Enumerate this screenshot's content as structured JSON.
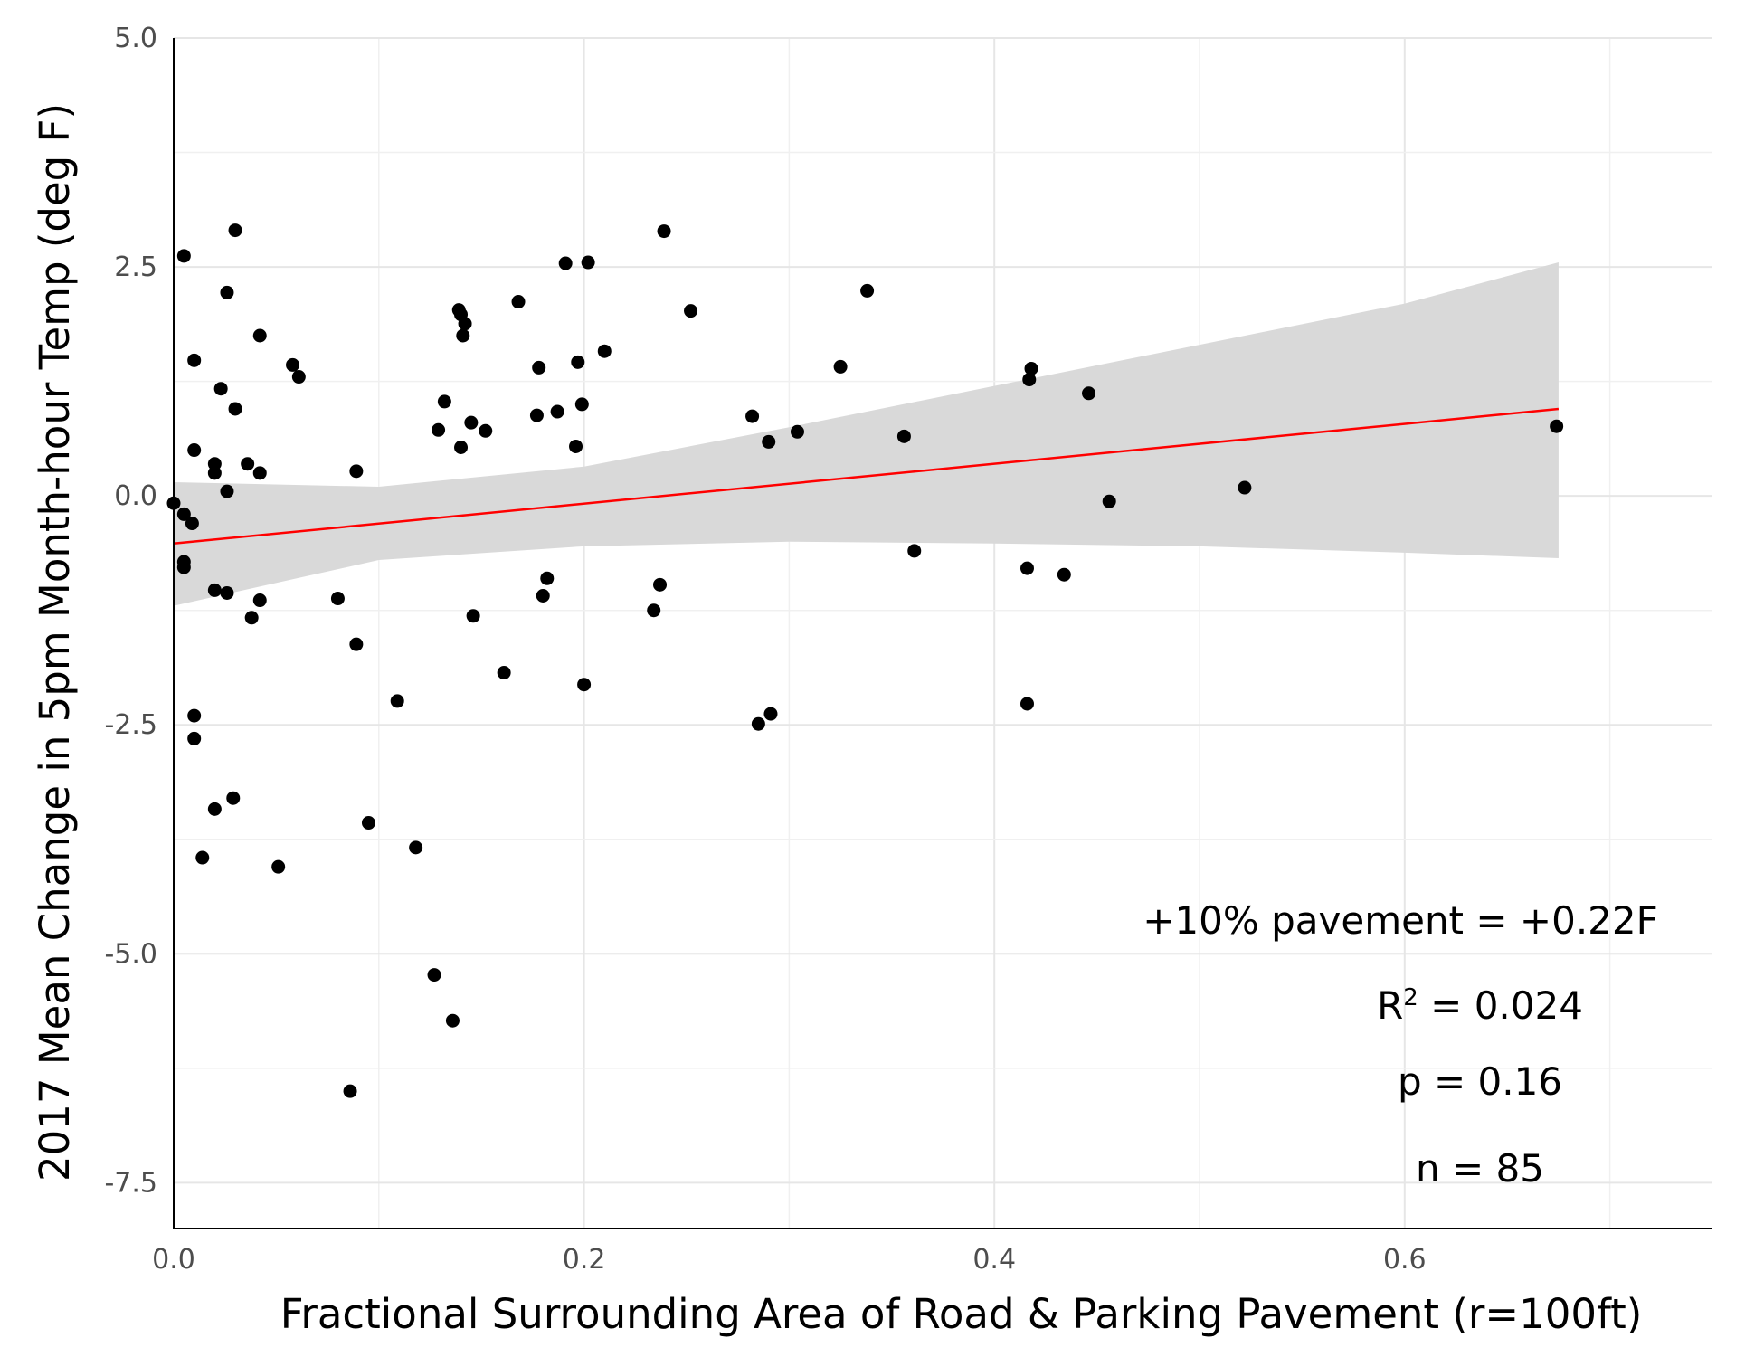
{
  "chart_data": {
    "type": "scatter",
    "xlabel": "Fractional Surrounding Area of Road & Parking Pavement (r=100ft)",
    "ylabel": "2017 Mean Change in 5pm Month-hour Temp (deg F)",
    "xlim": [
      0.0,
      0.75
    ],
    "ylim": [
      -8.0,
      5.0
    ],
    "x_ticks": [
      0.0,
      0.2,
      0.4,
      0.6
    ],
    "x_tick_labels": [
      "0.0",
      "0.2",
      "0.4",
      "0.6"
    ],
    "y_ticks": [
      5.0,
      2.5,
      0.0,
      -2.5,
      -5.0,
      -7.5
    ],
    "y_tick_labels": [
      "5.0",
      "2.5",
      "0.0",
      "-2.5",
      "-5.0",
      "-7.5"
    ],
    "grid": true,
    "points": [
      {
        "x": 0.0,
        "y": -0.08
      },
      {
        "x": 0.005,
        "y": 2.62
      },
      {
        "x": 0.005,
        "y": -0.2
      },
      {
        "x": 0.005,
        "y": -0.72
      },
      {
        "x": 0.005,
        "y": -0.78
      },
      {
        "x": 0.009,
        "y": -0.3
      },
      {
        "x": 0.01,
        "y": 1.48
      },
      {
        "x": 0.01,
        "y": 0.5
      },
      {
        "x": 0.01,
        "y": -2.4
      },
      {
        "x": 0.01,
        "y": -2.65
      },
      {
        "x": 0.014,
        "y": -3.95
      },
      {
        "x": 0.02,
        "y": 0.35
      },
      {
        "x": 0.02,
        "y": 0.25
      },
      {
        "x": 0.02,
        "y": -1.03
      },
      {
        "x": 0.02,
        "y": -3.42
      },
      {
        "x": 0.023,
        "y": 1.17
      },
      {
        "x": 0.026,
        "y": 2.22
      },
      {
        "x": 0.026,
        "y": 0.05
      },
      {
        "x": 0.026,
        "y": -1.06
      },
      {
        "x": 0.029,
        "y": -3.3
      },
      {
        "x": 0.03,
        "y": 2.9
      },
      {
        "x": 0.03,
        "y": 0.95
      },
      {
        "x": 0.036,
        "y": 0.35
      },
      {
        "x": 0.038,
        "y": -1.33
      },
      {
        "x": 0.042,
        "y": 1.75
      },
      {
        "x": 0.042,
        "y": 0.25
      },
      {
        "x": 0.042,
        "y": -1.14
      },
      {
        "x": 0.051,
        "y": -4.05
      },
      {
        "x": 0.058,
        "y": 1.43
      },
      {
        "x": 0.061,
        "y": 1.3
      },
      {
        "x": 0.08,
        "y": -1.12
      },
      {
        "x": 0.086,
        "y": -6.5
      },
      {
        "x": 0.089,
        "y": 0.27
      },
      {
        "x": 0.089,
        "y": -1.62
      },
      {
        "x": 0.095,
        "y": -3.57
      },
      {
        "x": 0.109,
        "y": -2.24
      },
      {
        "x": 0.118,
        "y": -3.84
      },
      {
        "x": 0.127,
        "y": -5.23
      },
      {
        "x": 0.129,
        "y": 0.72
      },
      {
        "x": 0.132,
        "y": 1.03
      },
      {
        "x": 0.136,
        "y": -5.73
      },
      {
        "x": 0.139,
        "y": 2.03
      },
      {
        "x": 0.14,
        "y": 1.98
      },
      {
        "x": 0.14,
        "y": 0.53
      },
      {
        "x": 0.141,
        "y": 1.75
      },
      {
        "x": 0.142,
        "y": 1.88
      },
      {
        "x": 0.145,
        "y": 0.8
      },
      {
        "x": 0.146,
        "y": -1.31
      },
      {
        "x": 0.152,
        "y": 0.71
      },
      {
        "x": 0.161,
        "y": -1.93
      },
      {
        "x": 0.168,
        "y": 2.12
      },
      {
        "x": 0.177,
        "y": 0.88
      },
      {
        "x": 0.178,
        "y": 1.4
      },
      {
        "x": 0.18,
        "y": -1.09
      },
      {
        "x": 0.182,
        "y": -0.9
      },
      {
        "x": 0.187,
        "y": 0.92
      },
      {
        "x": 0.191,
        "y": 2.54
      },
      {
        "x": 0.196,
        "y": 0.54
      },
      {
        "x": 0.197,
        "y": 1.46
      },
      {
        "x": 0.199,
        "y": 1.0
      },
      {
        "x": 0.2,
        "y": -2.06
      },
      {
        "x": 0.202,
        "y": 2.55
      },
      {
        "x": 0.21,
        "y": 1.58
      },
      {
        "x": 0.234,
        "y": -1.25
      },
      {
        "x": 0.237,
        "y": -0.97
      },
      {
        "x": 0.239,
        "y": 2.89
      },
      {
        "x": 0.252,
        "y": 2.02
      },
      {
        "x": 0.282,
        "y": 0.87
      },
      {
        "x": 0.285,
        "y": -2.49
      },
      {
        "x": 0.29,
        "y": 0.59
      },
      {
        "x": 0.291,
        "y": -2.38
      },
      {
        "x": 0.304,
        "y": 0.7
      },
      {
        "x": 0.325,
        "y": 1.41
      },
      {
        "x": 0.338,
        "y": 2.24
      },
      {
        "x": 0.356,
        "y": 0.65
      },
      {
        "x": 0.361,
        "y": -0.6
      },
      {
        "x": 0.416,
        "y": -0.79
      },
      {
        "x": 0.416,
        "y": -2.27
      },
      {
        "x": 0.417,
        "y": 1.27
      },
      {
        "x": 0.418,
        "y": 1.39
      },
      {
        "x": 0.434,
        "y": -0.86
      },
      {
        "x": 0.446,
        "y": 1.12
      },
      {
        "x": 0.456,
        "y": -0.06
      },
      {
        "x": 0.522,
        "y": 0.09
      },
      {
        "x": 0.674,
        "y": 0.76
      }
    ],
    "fit_line": {
      "x": [
        0.0,
        0.675
      ],
      "y": [
        -0.52,
        0.95
      ],
      "color": "#ff0000"
    },
    "confidence_band": {
      "x": [
        0.0,
        0.1,
        0.2,
        0.3,
        0.4,
        0.5,
        0.6,
        0.675
      ],
      "upper": [
        0.15,
        0.1,
        0.32,
        0.75,
        1.2,
        1.65,
        2.1,
        2.55
      ],
      "lower": [
        -1.2,
        -0.7,
        -0.55,
        -0.5,
        -0.52,
        -0.55,
        -0.62,
        -0.68
      ],
      "color": "#d9d9d9"
    },
    "point_color": "#000000",
    "annotations": {
      "slope": "+10% pavement = +0.22F",
      "r2_label": "R",
      "r2_sup": "2",
      "r2_value": " = 0.024",
      "p": "p = 0.16",
      "n": "n = 85"
    }
  }
}
